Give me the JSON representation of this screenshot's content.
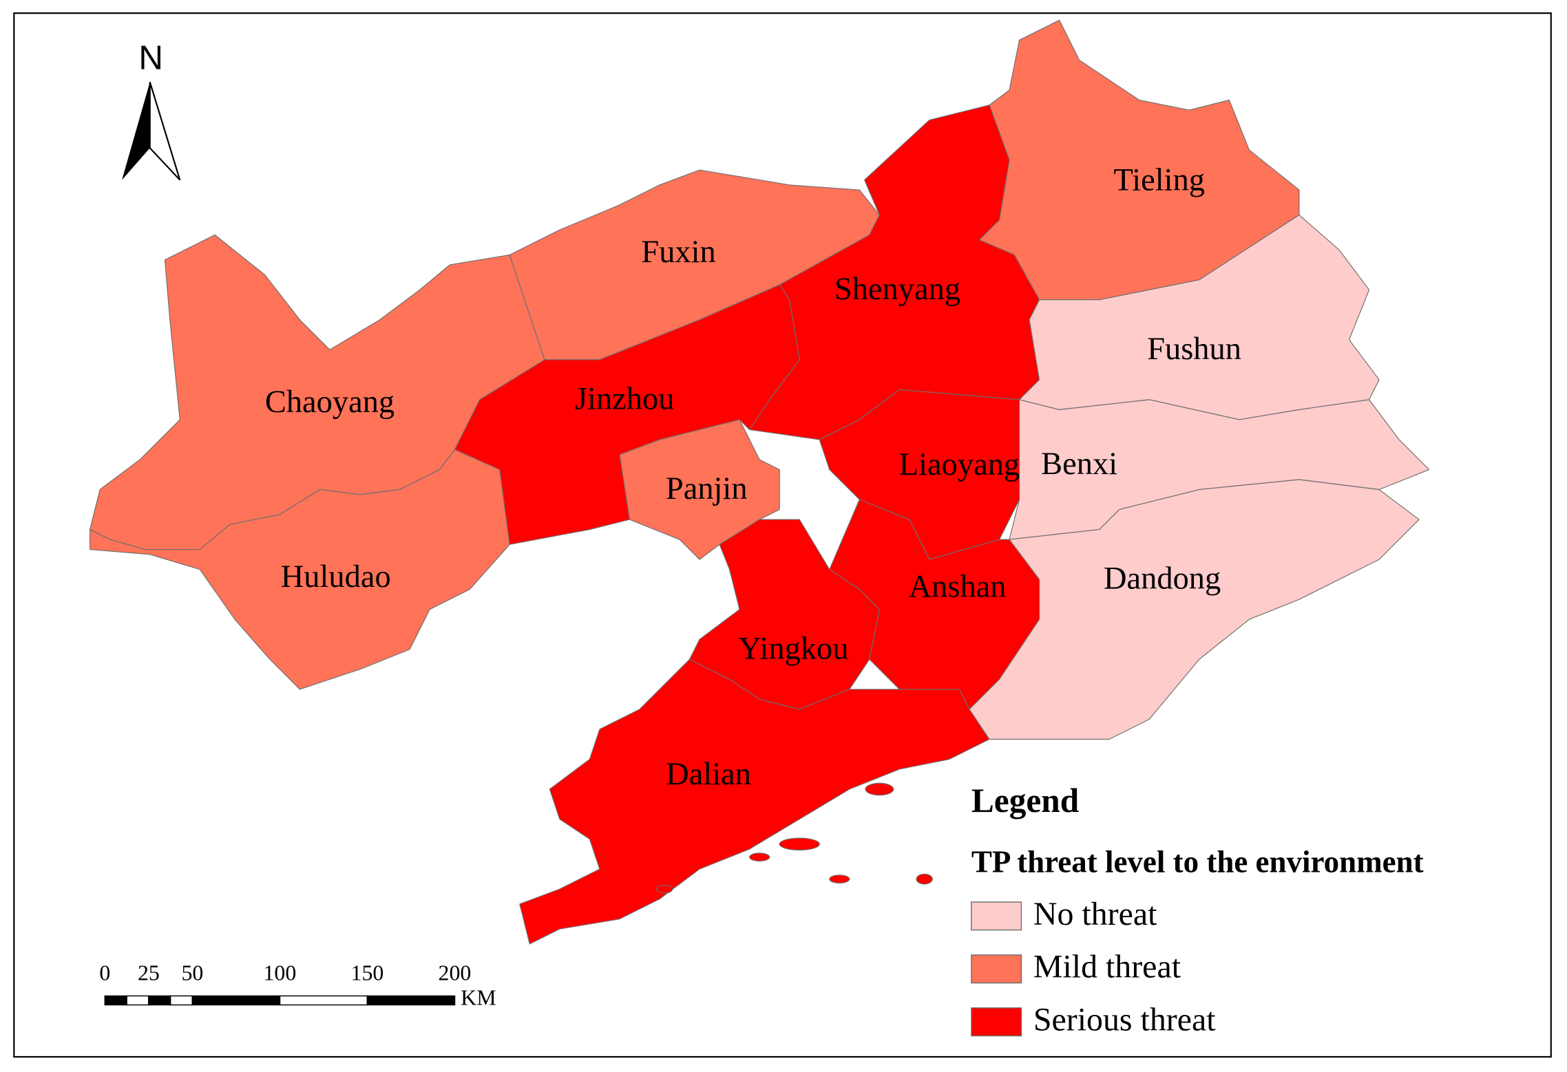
{
  "map": {
    "north": "N",
    "regions": [
      {
        "label": "Chaoyang",
        "color": "#ff7359"
      },
      {
        "label": "Huludao",
        "color": "#ff7359"
      },
      {
        "label": "Fuxin",
        "color": "#ff7359"
      },
      {
        "label": "Tieling",
        "color": "#ff7359"
      },
      {
        "label": "Panjin",
        "color": "#ff7359"
      },
      {
        "label": "Shenyang",
        "color": "#ff0000"
      },
      {
        "label": "Jinzhou",
        "color": "#ff0000"
      },
      {
        "label": "Liaoyang",
        "color": "#ff0000"
      },
      {
        "label": "Anshan",
        "color": "#ff0000"
      },
      {
        "label": "Yingkou",
        "color": "#ff0000"
      },
      {
        "label": "Dalian",
        "color": "#ff0000"
      },
      {
        "label": "Fushun",
        "color": "#ffcccc"
      },
      {
        "label": "Benxi",
        "color": "#ffcccc"
      },
      {
        "label": "Dandong",
        "color": "#ffcccc"
      }
    ],
    "legend": {
      "title": "Legend",
      "subtitle": "TP threat level to the environment",
      "items": [
        {
          "label": "No threat",
          "color": "#ffcccc"
        },
        {
          "label": "Mild threat",
          "color": "#ff7359"
        },
        {
          "label": "Serious threat",
          "color": "#ff0000"
        }
      ]
    },
    "scale_bar": {
      "ticks": [
        0,
        25,
        50,
        100,
        150,
        200
      ],
      "unit": "KM"
    }
  }
}
